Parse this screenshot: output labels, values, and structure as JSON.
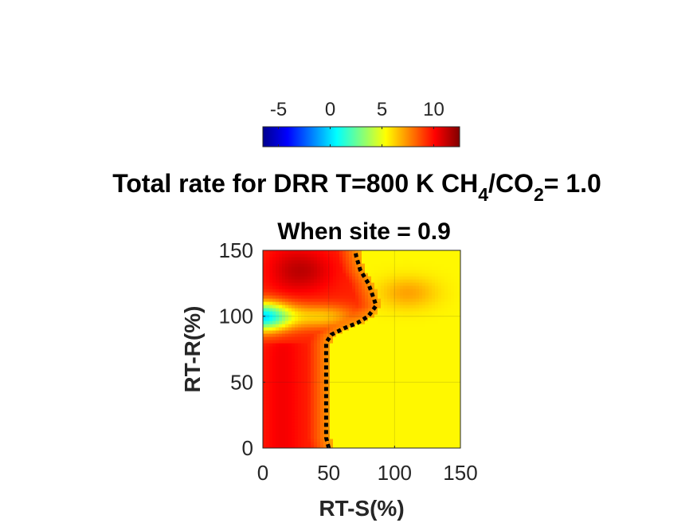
{
  "chart_data": {
    "type": "heatmap",
    "title": {
      "prefix": "Total rate for DRR T=800 K CH",
      "sub1": "4",
      "mid": "/CO",
      "sub2": "2",
      "suffix": "= 1.0"
    },
    "subtitle": "When site = 0.9",
    "xlabel": "RT-S(%)",
    "ylabel": "RT-R(%)",
    "xlim": [
      0,
      150
    ],
    "ylim": [
      0,
      150
    ],
    "x_ticks": [
      "0",
      "50",
      "100",
      "150"
    ],
    "y_ticks": [
      "0",
      "50",
      "100",
      "150"
    ],
    "grid": true,
    "colormap": "jet",
    "colorbar": {
      "location": "top",
      "ticks": [
        "-5",
        "0",
        "5",
        "10"
      ],
      "tick_values": [
        -5,
        0,
        5,
        10
      ],
      "clim": [
        -6.5,
        12.5
      ]
    },
    "boundary_line": {
      "style": "dotted",
      "color": "#000000",
      "points": [
        [
          50,
          0
        ],
        [
          48,
          8
        ],
        [
          48,
          40
        ],
        [
          48,
          80
        ],
        [
          52,
          86
        ],
        [
          62,
          91
        ],
        [
          72,
          95
        ],
        [
          80,
          100
        ],
        [
          86,
          108
        ],
        [
          84,
          114
        ],
        [
          80,
          125
        ],
        [
          74,
          135
        ],
        [
          71,
          145
        ],
        [
          70,
          150
        ]
      ]
    },
    "value_summary": {
      "plateau_value": 5.5,
      "max_value": 12.3,
      "min_value": -1.5
    }
  }
}
